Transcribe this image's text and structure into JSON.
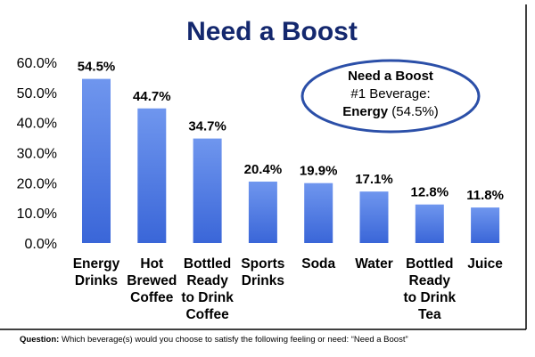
{
  "chart_data": {
    "type": "bar",
    "title": "Need a Boost",
    "categories": [
      [
        "Energy",
        "Drinks"
      ],
      [
        "Hot",
        "Brewed",
        "Coffee"
      ],
      [
        "Bottled",
        "Ready",
        "to Drink",
        "Coffee"
      ],
      [
        "Sports",
        "Drinks"
      ],
      [
        "Soda"
      ],
      [
        "Water"
      ],
      [
        "Bottled",
        "Ready",
        "to Drink",
        "Tea"
      ],
      [
        "Juice"
      ]
    ],
    "values": [
      54.5,
      44.7,
      34.7,
      20.4,
      19.9,
      17.1,
      12.8,
      11.8
    ],
    "value_labels": [
      "54.5%",
      "44.7%",
      "34.7%",
      "20.4%",
      "19.9%",
      "17.1%",
      "12.8%",
      "11.8%"
    ],
    "ylim": [
      0,
      60
    ],
    "yticks": [
      "0.0%",
      "10.0%",
      "20.0%",
      "30.0%",
      "40.0%",
      "50.0%",
      "60.0%"
    ],
    "grid": false,
    "legend": "none",
    "colors": {
      "bar_top": "#6f96ee",
      "bar_bottom": "#3a66d8",
      "title": "#14286e",
      "text": "#000000",
      "frame": "#000000",
      "callout_border": "#2b4fa8"
    },
    "callout": {
      "line1": "Need a Boost",
      "line2": "#1 Beverage:",
      "bold_part": "Energy",
      "rest": " (54.5%)"
    }
  },
  "footnote": {
    "label": "Question:",
    "text": " Which beverage(s) would you choose to satisfy the following feeling or need: “Need a Boost”"
  }
}
